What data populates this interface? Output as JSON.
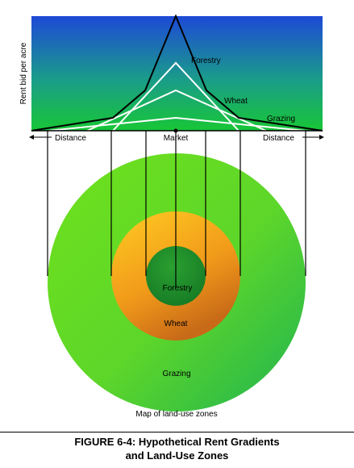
{
  "gradient": {
    "ylabel": "Rent bid per acre",
    "curves": {
      "forestry": "Forestry",
      "wheat": "Wheat",
      "grazing": "Grazing"
    },
    "axis": {
      "left": "Distance",
      "center": "Market",
      "right": "Distance"
    }
  },
  "map": {
    "zones": {
      "forestry": "Forestry",
      "wheat": "Wheat",
      "grazing": "Grazing"
    },
    "caption": "Map of land-use zones"
  },
  "figure": {
    "title_line1": "FIGURE 6-4:  Hypothetical Rent Gradients",
    "title_line2": "and Land-Use Zones"
  },
  "colors": {
    "sky_top": "#1e4fd8",
    "sky_bottom": "#19c23c",
    "forestry": "#1a8f2a",
    "wheat": "#f0a018",
    "grazing": "#6ee01e"
  }
}
